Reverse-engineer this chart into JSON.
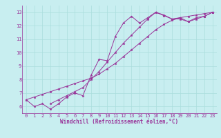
{
  "xlabel": "Windchill (Refroidissement éolien,°C)",
  "ylabel": "",
  "background_color": "#c8eef0",
  "line_color": "#993399",
  "xlim": [
    -0.5,
    23.5
  ],
  "ylim": [
    5.5,
    13.5
  ],
  "xticks": [
    0,
    1,
    2,
    3,
    4,
    5,
    6,
    7,
    8,
    9,
    10,
    11,
    12,
    13,
    14,
    15,
    16,
    17,
    18,
    19,
    20,
    21,
    22,
    23
  ],
  "yticks": [
    6,
    7,
    8,
    9,
    10,
    11,
    12,
    13
  ],
  "grid_color": "#aadddd",
  "line1_x": [
    0,
    1,
    2,
    3,
    4,
    5,
    6,
    7,
    8,
    9,
    10,
    11,
    12,
    13,
    14,
    15,
    16,
    17,
    18,
    19,
    20,
    21,
    22,
    23
  ],
  "line1_y": [
    6.5,
    6.0,
    6.2,
    5.8,
    6.2,
    6.7,
    7.0,
    6.8,
    8.3,
    9.5,
    9.4,
    11.2,
    12.2,
    12.7,
    12.2,
    12.6,
    13.0,
    12.8,
    12.5,
    12.6,
    12.3,
    12.6,
    12.7,
    13.0
  ],
  "line2_x": [
    3,
    4,
    5,
    6,
    7,
    8,
    9,
    10,
    11,
    12,
    13,
    14,
    15,
    16,
    17,
    18,
    19,
    20,
    21,
    22,
    23
  ],
  "line2_y": [
    6.2,
    6.5,
    6.8,
    7.1,
    7.4,
    8.0,
    8.6,
    9.3,
    10.0,
    10.7,
    11.3,
    11.9,
    12.5,
    13.0,
    12.75,
    12.5,
    12.5,
    12.3,
    12.5,
    12.7,
    13.0
  ],
  "line3_x": [
    0,
    1,
    2,
    3,
    4,
    5,
    6,
    7,
    8,
    9,
    10,
    11,
    12,
    13,
    14,
    15,
    16,
    17,
    18,
    19,
    20,
    21,
    22,
    23
  ],
  "line3_y": [
    6.5,
    6.7,
    6.9,
    7.1,
    7.3,
    7.5,
    7.7,
    7.9,
    8.1,
    8.4,
    8.8,
    9.2,
    9.7,
    10.2,
    10.7,
    11.2,
    11.7,
    12.1,
    12.4,
    12.6,
    12.7,
    12.8,
    12.9,
    13.0
  ],
  "tick_fontsize": 5,
  "xlabel_fontsize": 5.5,
  "marker_size": 2.5,
  "line_width": 0.7
}
